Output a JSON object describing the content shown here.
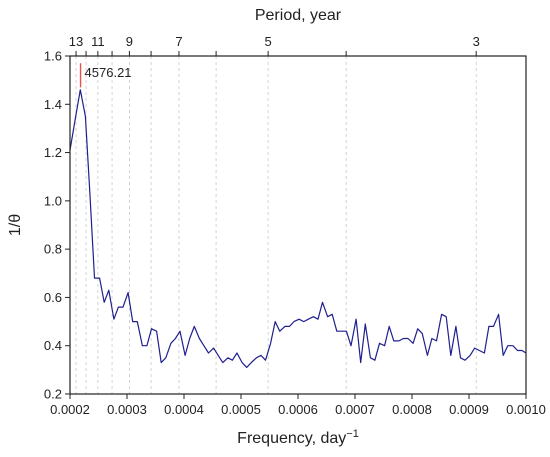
{
  "chart_data": {
    "type": "line",
    "xlabel": "Frequency, day",
    "xlabel_superscript": "−1",
    "ylabel": "1/θ",
    "top_axis_label": "Period, year",
    "xlim": [
      0.0002,
      0.001
    ],
    "ylim": [
      0.2,
      1.6
    ],
    "x_ticks": [
      0.0002,
      0.0003,
      0.0004,
      0.0005,
      0.0006,
      0.0007,
      0.0008,
      0.0009,
      0.001
    ],
    "x_tick_labels": [
      "0.0002",
      "0.0003",
      "0.0004",
      "0.0005",
      "0.0006",
      "0.0007",
      "0.0008",
      "0.0009",
      "0.0010"
    ],
    "y_ticks": [
      0.2,
      0.4,
      0.6,
      0.8,
      1.0,
      1.2,
      1.4,
      1.6
    ],
    "y_tick_labels": [
      "0.2",
      "0.4",
      "0.6",
      "0.8",
      "1.0",
      "1.2",
      "1.4",
      "1.6"
    ],
    "top_ticks": [
      {
        "period_years": 13,
        "label": "13"
      },
      {
        "period_years": 12,
        "label": ""
      },
      {
        "period_years": 11,
        "label": "11"
      },
      {
        "period_years": 10,
        "label": ""
      },
      {
        "period_years": 9,
        "label": "9"
      },
      {
        "period_years": 8,
        "label": ""
      },
      {
        "period_years": 7,
        "label": "7"
      },
      {
        "period_years": 6,
        "label": ""
      },
      {
        "period_years": 5,
        "label": "5"
      },
      {
        "period_years": 4,
        "label": ""
      },
      {
        "period_years": 3,
        "label": "3"
      }
    ],
    "grid": "dashed vertical lines at top-axis period ticks",
    "annotations": [
      {
        "text": "4576.21",
        "x": 0.0002185,
        "y_bottom": 1.47,
        "y_top": 1.57,
        "color": "#e8504a"
      }
    ],
    "series": [
      {
        "color": "#1f1f8f",
        "x": [
          0.0002,
          0.00021,
          0.000218,
          0.000227,
          0.000235,
          0.000243,
          0.000252,
          0.00026,
          0.000268,
          0.000277,
          0.000285,
          0.000293,
          0.000302,
          0.00031,
          0.000318,
          0.000327,
          0.000335,
          0.000343,
          0.000352,
          0.00036,
          0.000368,
          0.000377,
          0.000385,
          0.000393,
          0.000402,
          0.00041,
          0.000418,
          0.000427,
          0.000435,
          0.000443,
          0.000452,
          0.00046,
          0.000468,
          0.000477,
          0.000485,
          0.000493,
          0.000502,
          0.00051,
          0.000518,
          0.000527,
          0.000535,
          0.000543,
          0.000552,
          0.00056,
          0.000568,
          0.000577,
          0.000585,
          0.000593,
          0.000602,
          0.00061,
          0.000618,
          0.000627,
          0.000635,
          0.000643,
          0.000652,
          0.00066,
          0.000668,
          0.000677,
          0.000685,
          0.000693,
          0.000702,
          0.00071,
          0.000718,
          0.000727,
          0.000735,
          0.000743,
          0.000752,
          0.00076,
          0.000768,
          0.000777,
          0.000785,
          0.000793,
          0.000802,
          0.00081,
          0.000818,
          0.000827,
          0.000835,
          0.000843,
          0.000852,
          0.00086,
          0.000868,
          0.000877,
          0.000885,
          0.000893,
          0.000902,
          0.00091,
          0.000918,
          0.000927,
          0.000935,
          0.000943,
          0.000952,
          0.00096,
          0.000968,
          0.000977,
          0.000985,
          0.000993,
          0.001
        ],
        "values": [
          1.21,
          1.35,
          1.46,
          1.35,
          1.03,
          0.68,
          0.68,
          0.58,
          0.63,
          0.51,
          0.56,
          0.56,
          0.62,
          0.5,
          0.5,
          0.4,
          0.4,
          0.47,
          0.46,
          0.33,
          0.35,
          0.41,
          0.43,
          0.46,
          0.36,
          0.43,
          0.48,
          0.43,
          0.4,
          0.37,
          0.39,
          0.36,
          0.33,
          0.35,
          0.34,
          0.37,
          0.33,
          0.31,
          0.33,
          0.35,
          0.36,
          0.34,
          0.41,
          0.5,
          0.46,
          0.48,
          0.48,
          0.5,
          0.51,
          0.5,
          0.51,
          0.52,
          0.51,
          0.58,
          0.52,
          0.53,
          0.46,
          0.46,
          0.46,
          0.4,
          0.51,
          0.33,
          0.49,
          0.35,
          0.34,
          0.41,
          0.4,
          0.48,
          0.42,
          0.42,
          0.43,
          0.43,
          0.41,
          0.47,
          0.45,
          0.36,
          0.43,
          0.42,
          0.53,
          0.52,
          0.36,
          0.48,
          0.35,
          0.34,
          0.36,
          0.39,
          0.38,
          0.37,
          0.48,
          0.48,
          0.53,
          0.36,
          0.4,
          0.4,
          0.38,
          0.38,
          0.37
        ]
      }
    ]
  }
}
